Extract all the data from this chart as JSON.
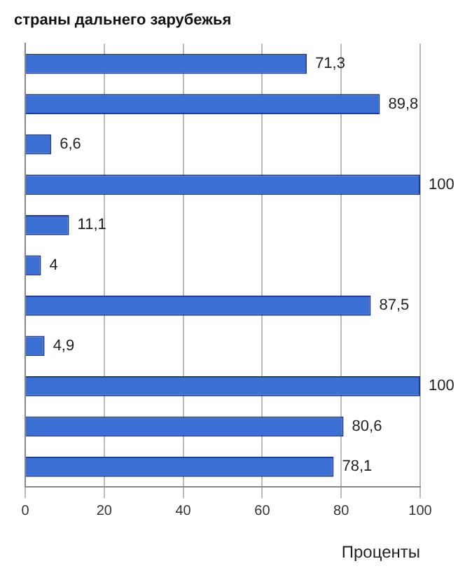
{
  "chart_data": {
    "type": "bar",
    "orientation": "horizontal",
    "title": "страны дальнего зарубежья",
    "xlabel": "Проценты",
    "categories": [
      null,
      null,
      null,
      null,
      null,
      null,
      null,
      null,
      null,
      null,
      null
    ],
    "values": [
      71.3,
      89.8,
      6.6,
      100,
      11.1,
      4,
      87.5,
      4.9,
      100,
      80.6,
      78.1
    ],
    "value_labels": [
      "71,3",
      "89,8",
      "6,6",
      "100",
      "11,1",
      "4",
      "87,5",
      "4,9",
      "100",
      "80,6",
      "78,1"
    ],
    "color": "#3b6fd4",
    "xlim": [
      0,
      100
    ],
    "xticks": [
      0,
      20,
      40,
      60,
      80,
      100
    ],
    "grid": "x"
  }
}
